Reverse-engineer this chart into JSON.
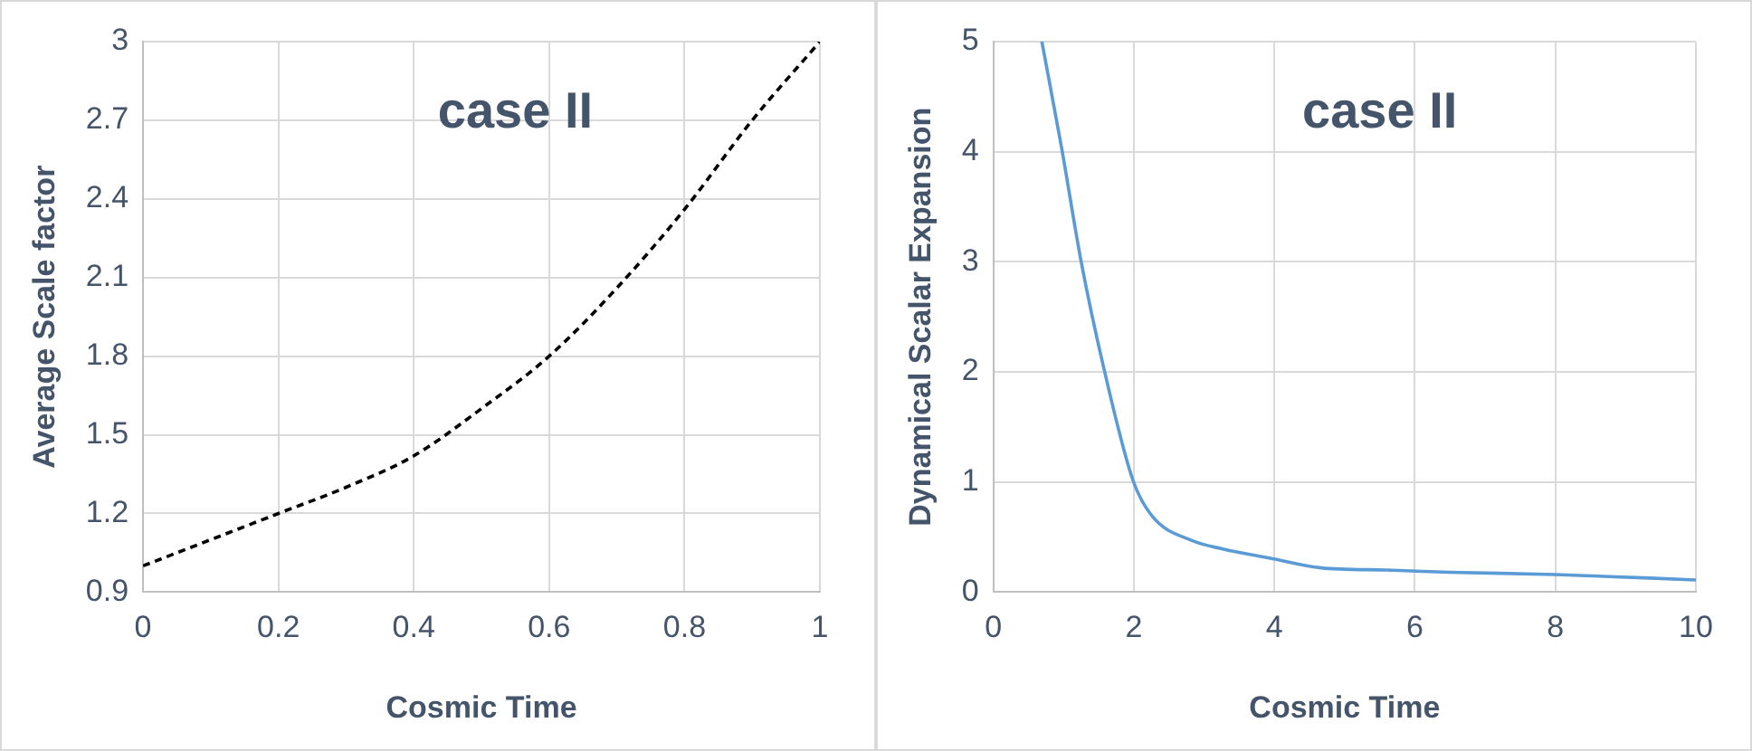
{
  "chart_data": [
    {
      "type": "line",
      "title": "case II",
      "xlabel": "Cosmic Time",
      "ylabel": "Average Scale factor",
      "xlim": [
        0,
        1
      ],
      "xticks": [
        0,
        0.2,
        0.4,
        0.6,
        0.8,
        1
      ],
      "ylim": [
        0.9,
        3
      ],
      "yticks": [
        0.9,
        1.2,
        1.5,
        1.8,
        2.1,
        2.4,
        2.7,
        3
      ],
      "grid": true,
      "marker": "none",
      "line_style": "dashed",
      "series": [
        {
          "color": "#000000",
          "x": [
            0,
            0.1,
            0.2,
            0.3,
            0.4,
            0.5,
            0.6,
            0.7,
            0.8,
            0.9,
            1
          ],
          "values": [
            1.0,
            1.1,
            1.2,
            1.3,
            1.42,
            1.6,
            1.8,
            2.06,
            2.36,
            2.7,
            3.0
          ]
        }
      ]
    },
    {
      "type": "line",
      "title": "case II",
      "xlabel": "Cosmic Time",
      "ylabel": "Dynamical Scalar Expansion",
      "xlim": [
        0,
        10
      ],
      "xticks": [
        0,
        2,
        4,
        6,
        8,
        10
      ],
      "ylim": [
        0,
        5
      ],
      "yticks": [
        0,
        1,
        2,
        3,
        4,
        5
      ],
      "grid": true,
      "marker": "none",
      "line_style": "solid",
      "series": [
        {
          "color": "#5b9bd5",
          "x": [
            0.69,
            0.97,
            1.25,
            1.57,
            1.99,
            2.26,
            2.82,
            3.28,
            3.93,
            4.67,
            5.6,
            6.5,
            8,
            10
          ],
          "values": [
            5,
            4.04,
            3.0,
            2.04,
            1.01,
            0.69,
            0.47,
            0.39,
            0.31,
            0.22,
            0.2,
            0.18,
            0.16,
            0.11
          ]
        }
      ]
    }
  ]
}
